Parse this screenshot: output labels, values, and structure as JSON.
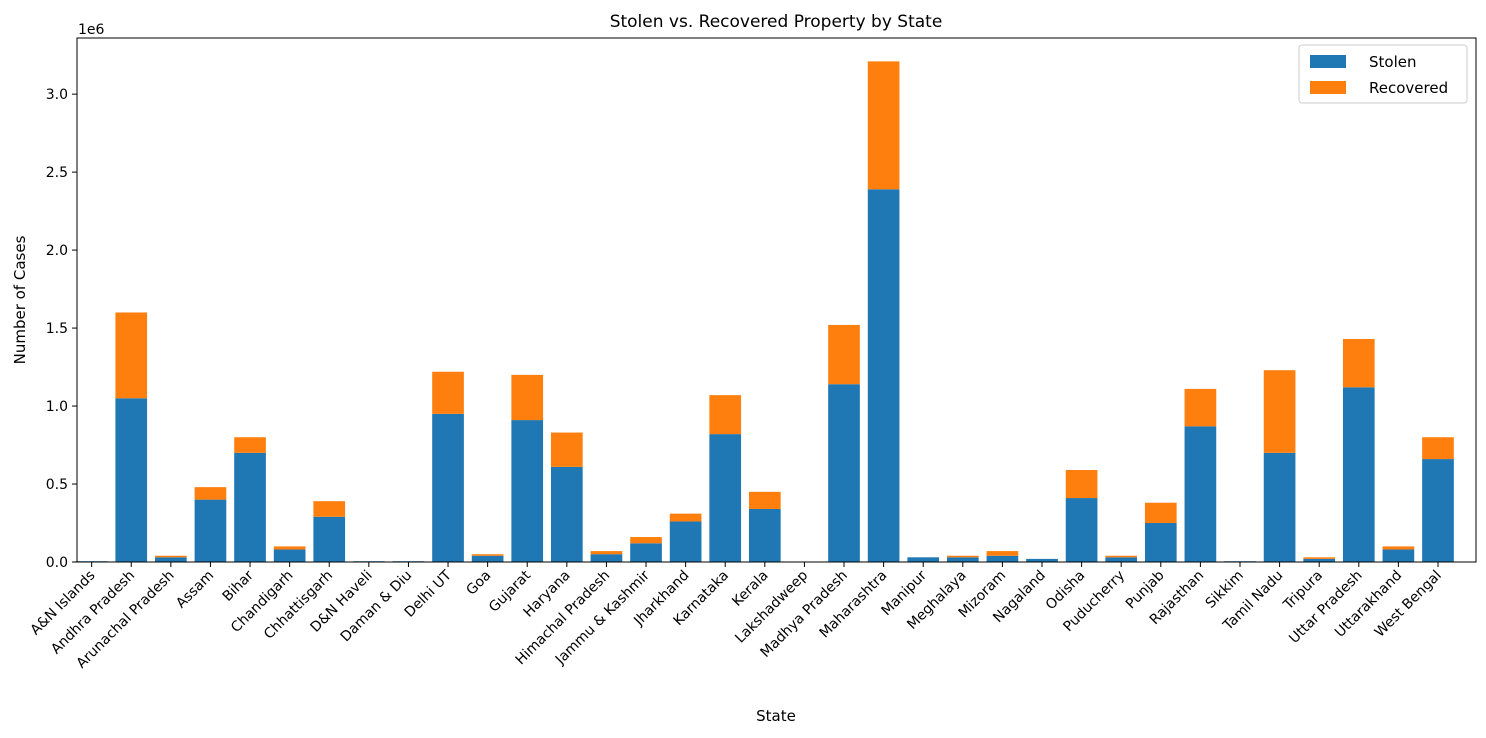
{
  "chart_data": {
    "type": "bar",
    "stacked": true,
    "title": "Stolen vs. Recovered Property by State",
    "xlabel": "State",
    "ylabel": "Number of Cases",
    "y_offset_label": "1e6",
    "y_multiplier": 1000000,
    "ylim": [
      0,
      3.36
    ],
    "yticks": [
      0,
      0.5,
      1.0,
      1.5,
      2.0,
      2.5,
      3.0
    ],
    "ytick_labels": [
      "0.0",
      "0.5",
      "1.0",
      "1.5",
      "2.0",
      "2.5",
      "3.0"
    ],
    "grid": false,
    "legend_position": "top-right",
    "categories": [
      "A&N Islands",
      "Andhra Pradesh",
      "Arunachal Pradesh",
      "Assam",
      "Bihar",
      "Chandigarh",
      "Chhattisgarh",
      "D&N Haveli",
      "Daman & Diu",
      "Delhi UT",
      "Goa",
      "Gujarat",
      "Haryana",
      "Himachal Pradesh",
      "Jammu & Kashmir",
      "Jharkhand",
      "Karnataka",
      "Kerala",
      "Lakshadweep",
      "Madhya Pradesh",
      "Maharashtra",
      "Manipur",
      "Meghalaya",
      "Mizoram",
      "Nagaland",
      "Odisha",
      "Puducherry",
      "Punjab",
      "Rajasthan",
      "Sikkim",
      "Tamil Nadu",
      "Tripura",
      "Uttar Pradesh",
      "Uttarakhand",
      "West Bengal"
    ],
    "series": [
      {
        "name": "Stolen",
        "color": "#1f77b4",
        "values": [
          0.005,
          1.05,
          0.03,
          0.4,
          0.7,
          0.08,
          0.29,
          0.005,
          0.005,
          0.95,
          0.04,
          0.91,
          0.61,
          0.05,
          0.12,
          0.26,
          0.82,
          0.34,
          0.003,
          1.14,
          2.39,
          0.03,
          0.03,
          0.04,
          0.02,
          0.41,
          0.03,
          0.25,
          0.87,
          0.005,
          0.7,
          0.02,
          1.12,
          0.08,
          0.66
        ]
      },
      {
        "name": "Recovered",
        "color": "#ff7f0e",
        "values": [
          0.0,
          0.55,
          0.01,
          0.08,
          0.1,
          0.02,
          0.1,
          0.0,
          0.0,
          0.27,
          0.01,
          0.29,
          0.22,
          0.02,
          0.04,
          0.05,
          0.25,
          0.11,
          0.0,
          0.38,
          0.82,
          0.0,
          0.01,
          0.03,
          0.0,
          0.18,
          0.01,
          0.13,
          0.24,
          0.0,
          0.53,
          0.01,
          0.31,
          0.02,
          0.14
        ]
      }
    ]
  }
}
